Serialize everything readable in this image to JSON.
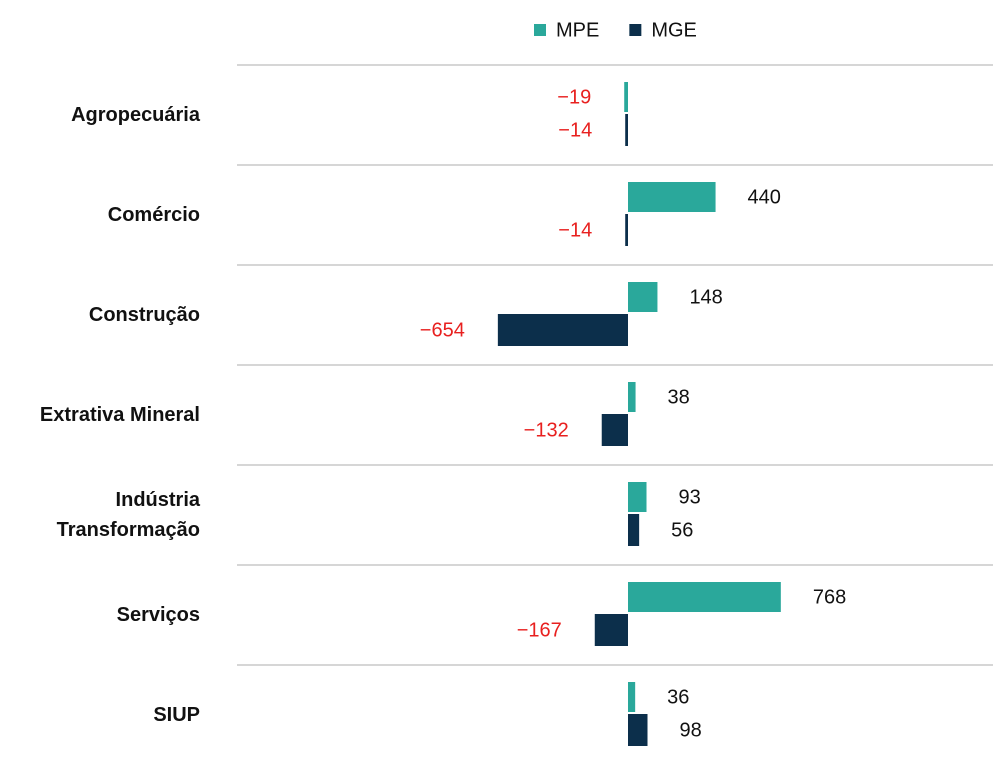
{
  "chart_data": {
    "type": "bar",
    "orientation": "horizontal",
    "categories": [
      "Agropecuária",
      "Comércio",
      "Construção",
      "Extrativa Mineral",
      "Indústria Transformação",
      "Serviços",
      "SIUP"
    ],
    "series": [
      {
        "name": "MPE",
        "color": "#2aa89b",
        "values": [
          -19,
          440,
          148,
          38,
          93,
          768,
          36
        ],
        "value_labels": [
          "−19",
          "440",
          "148",
          "38",
          "93",
          "768",
          "36"
        ]
      },
      {
        "name": "MGE",
        "color": "#0c2f4b",
        "values": [
          -14,
          -14,
          -654,
          -132,
          56,
          -167,
          98
        ],
        "value_labels": [
          "−14",
          "−14",
          "−654",
          "−132",
          "56",
          "−167",
          "98"
        ]
      }
    ],
    "negative_label_color": "#e8201f",
    "positive_label_color": "#111111",
    "legend": "top"
  }
}
